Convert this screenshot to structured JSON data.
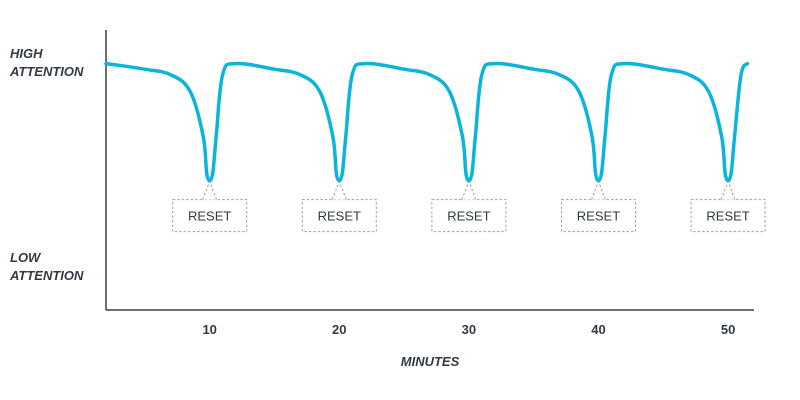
{
  "chart_data": {
    "type": "line",
    "title": "",
    "xlabel": "MINUTES",
    "ylabel": "",
    "y_labels": {
      "high": [
        "HIGH",
        "ATTENTION"
      ],
      "low": [
        "LOW",
        "ATTENTION"
      ]
    },
    "xticks": [
      10,
      20,
      30,
      40,
      50
    ],
    "xlim": [
      2,
      52
    ],
    "ylim": [
      0,
      100
    ],
    "grid": false,
    "line_color": "#0bb5da",
    "axis_color": "#3a3f47",
    "annotation_color": "#9aa0a6",
    "series": [
      {
        "x": [
          2,
          5,
          7,
          8.5,
          9.5,
          9.8,
          10.2,
          10.5,
          11,
          12,
          15,
          17,
          18.5,
          19.5,
          19.8,
          20.2,
          20.5,
          21,
          22,
          25,
          27,
          28.5,
          29.5,
          29.8,
          30.2,
          30.5,
          31,
          32,
          35,
          37,
          38.5,
          39.5,
          39.8,
          40.2,
          40.5,
          41,
          42,
          45,
          47,
          48.5,
          49.5,
          49.8,
          50.2,
          50.5,
          51,
          51.5
        ],
        "y": [
          88,
          86,
          84,
          78,
          62,
          48,
          48,
          62,
          84,
          88,
          86,
          84,
          78,
          62,
          48,
          48,
          62,
          84,
          88,
          86,
          84,
          78,
          62,
          48,
          48,
          62,
          84,
          88,
          86,
          84,
          78,
          62,
          48,
          48,
          62,
          84,
          88,
          86,
          84,
          78,
          62,
          48,
          48,
          62,
          84,
          88
        ]
      }
    ],
    "annotations": [
      {
        "x": 10,
        "y": 48,
        "text": "RESET"
      },
      {
        "x": 20,
        "y": 48,
        "text": "RESET"
      },
      {
        "x": 30,
        "y": 48,
        "text": "RESET"
      },
      {
        "x": 40,
        "y": 48,
        "text": "RESET"
      },
      {
        "x": 50,
        "y": 48,
        "text": "RESET"
      }
    ]
  }
}
